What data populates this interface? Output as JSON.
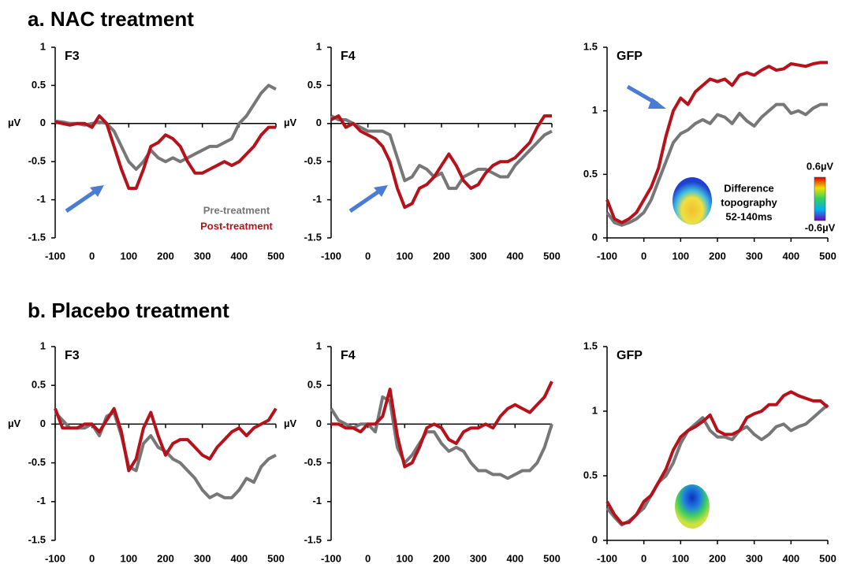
{
  "sections": [
    "a. NAC treatment",
    "b. Placebo treatment"
  ],
  "chart_data": [
    {
      "type": "line",
      "title": "F3",
      "ylabel": "µV",
      "legend": true,
      "x": [
        -100,
        -80,
        -60,
        -40,
        -20,
        0,
        20,
        40,
        60,
        80,
        100,
        120,
        140,
        160,
        180,
        200,
        220,
        240,
        260,
        280,
        300,
        320,
        340,
        360,
        380,
        400,
        420,
        440,
        460,
        480,
        500
      ],
      "xlim": [
        -100,
        500
      ],
      "xticks": [
        -100,
        0,
        100,
        200,
        300,
        400,
        500
      ],
      "ylim": [
        -1.5,
        1
      ],
      "yticks": [
        -1.5,
        -1,
        -0.5,
        0,
        0.5,
        1
      ],
      "series": [
        {
          "name": "Pre-treatment",
          "color": "#777777",
          "values": [
            0.03,
            0.02,
            0,
            0,
            -0.02,
            0,
            0.02,
            0,
            -0.1,
            -0.3,
            -0.5,
            -0.6,
            -0.5,
            -0.35,
            -0.45,
            -0.5,
            -0.45,
            -0.5,
            -0.45,
            -0.4,
            -0.35,
            -0.3,
            -0.3,
            -0.25,
            -0.2,
            0,
            0.1,
            0.25,
            0.4,
            0.5,
            0.45
          ]
        },
        {
          "name": "Post-treatment",
          "color": "#b5121b",
          "values": [
            0.02,
            0,
            -0.02,
            0,
            0,
            -0.05,
            0.1,
            0,
            -0.3,
            -0.6,
            -0.85,
            -0.85,
            -0.6,
            -0.3,
            -0.25,
            -0.15,
            -0.2,
            -0.3,
            -0.5,
            -0.65,
            -0.65,
            -0.6,
            -0.55,
            -0.5,
            -0.55,
            -0.5,
            -0.4,
            -0.3,
            -0.15,
            -0.05,
            -0.05
          ]
        }
      ]
    },
    {
      "type": "line",
      "title": "F4",
      "ylabel": "µV",
      "x": [
        -100,
        -80,
        -60,
        -40,
        -20,
        0,
        20,
        40,
        60,
        80,
        100,
        120,
        140,
        160,
        180,
        200,
        220,
        240,
        260,
        280,
        300,
        320,
        340,
        360,
        380,
        400,
        420,
        440,
        460,
        480,
        500
      ],
      "xlim": [
        -100,
        500
      ],
      "xticks": [
        -100,
        0,
        100,
        200,
        300,
        400,
        500
      ],
      "ylim": [
        -1.5,
        1
      ],
      "yticks": [
        -1.5,
        -1,
        -0.5,
        0,
        0.5,
        1
      ],
      "series": [
        {
          "color": "#777777",
          "values": [
            0.1,
            0.05,
            0.05,
            0,
            -0.05,
            -0.1,
            -0.1,
            -0.1,
            -0.15,
            -0.45,
            -0.75,
            -0.7,
            -0.55,
            -0.6,
            -0.7,
            -0.65,
            -0.85,
            -0.85,
            -0.7,
            -0.65,
            -0.6,
            -0.6,
            -0.65,
            -0.7,
            -0.7,
            -0.55,
            -0.45,
            -0.35,
            -0.25,
            -0.15,
            -0.1
          ]
        },
        {
          "color": "#b5121b",
          "values": [
            0.05,
            0.1,
            -0.05,
            0,
            -0.1,
            -0.15,
            -0.2,
            -0.3,
            -0.5,
            -0.85,
            -1.1,
            -1.05,
            -0.85,
            -0.8,
            -0.7,
            -0.55,
            -0.4,
            -0.55,
            -0.75,
            -0.85,
            -0.8,
            -0.65,
            -0.55,
            -0.5,
            -0.5,
            -0.45,
            -0.35,
            -0.25,
            -0.05,
            0.1,
            0.1
          ]
        }
      ]
    },
    {
      "type": "line",
      "title": "GFP",
      "annotation": [
        "Difference",
        "topography",
        "52-140ms"
      ],
      "colorbar_labels": [
        "0.6µV",
        "-0.6µV"
      ],
      "x": [
        -100,
        -80,
        -60,
        -40,
        -20,
        0,
        20,
        40,
        60,
        80,
        100,
        120,
        140,
        160,
        180,
        200,
        220,
        240,
        260,
        280,
        300,
        320,
        340,
        360,
        380,
        400,
        420,
        440,
        460,
        480,
        500
      ],
      "xlim": [
        -100,
        500
      ],
      "xticks": [
        -100,
        0,
        100,
        200,
        300,
        400,
        500
      ],
      "ylim": [
        0,
        1.5
      ],
      "yticks": [
        0,
        0.5,
        1,
        1.5
      ],
      "series": [
        {
          "color": "#777777",
          "values": [
            0.2,
            0.12,
            0.1,
            0.12,
            0.15,
            0.2,
            0.3,
            0.45,
            0.6,
            0.75,
            0.82,
            0.85,
            0.9,
            0.93,
            0.9,
            0.97,
            0.95,
            0.9,
            0.98,
            0.92,
            0.88,
            0.95,
            1,
            1.05,
            1.05,
            0.98,
            1,
            0.97,
            1.02,
            1.05,
            1.05
          ]
        },
        {
          "color": "#b5121b",
          "values": [
            0.3,
            0.15,
            0.12,
            0.15,
            0.2,
            0.3,
            0.4,
            0.55,
            0.8,
            1,
            1.1,
            1.05,
            1.15,
            1.2,
            1.25,
            1.23,
            1.25,
            1.2,
            1.28,
            1.3,
            1.28,
            1.32,
            1.35,
            1.32,
            1.33,
            1.37,
            1.36,
            1.35,
            1.37,
            1.38,
            1.38
          ]
        }
      ]
    },
    {
      "type": "line",
      "title": "F3",
      "ylabel": "µV",
      "x": [
        -100,
        -80,
        -60,
        -40,
        -20,
        0,
        20,
        40,
        60,
        80,
        100,
        120,
        140,
        160,
        180,
        200,
        220,
        240,
        260,
        280,
        300,
        320,
        340,
        360,
        380,
        400,
        420,
        440,
        460,
        480,
        500
      ],
      "xlim": [
        -100,
        500
      ],
      "xticks": [
        -100,
        0,
        100,
        200,
        300,
        400,
        500
      ],
      "ylim": [
        -1.5,
        1
      ],
      "yticks": [
        -1.5,
        -1,
        -0.5,
        0,
        0.5,
        1
      ],
      "series": [
        {
          "color": "#777777",
          "values": [
            0.15,
            0.05,
            -0.05,
            -0.05,
            -0.05,
            0,
            -0.15,
            0.1,
            0.15,
            -0.15,
            -0.55,
            -0.6,
            -0.25,
            -0.15,
            -0.3,
            -0.35,
            -0.45,
            -0.5,
            -0.6,
            -0.7,
            -0.85,
            -0.95,
            -0.9,
            -0.95,
            -0.95,
            -0.85,
            -0.7,
            -0.75,
            -0.55,
            -0.45,
            -0.4
          ]
        },
        {
          "color": "#b5121b",
          "values": [
            0.2,
            -0.05,
            -0.05,
            -0.05,
            0,
            0,
            -0.1,
            0.05,
            0.2,
            -0.1,
            -0.6,
            -0.45,
            -0.05,
            0.15,
            -0.15,
            -0.4,
            -0.25,
            -0.2,
            -0.2,
            -0.3,
            -0.4,
            -0.45,
            -0.3,
            -0.2,
            -0.1,
            -0.05,
            -0.15,
            -0.05,
            0,
            0.05,
            0.2
          ]
        }
      ]
    },
    {
      "type": "line",
      "title": "F4",
      "ylabel": "µV",
      "x": [
        -100,
        -80,
        -60,
        -40,
        -20,
        0,
        20,
        40,
        60,
        80,
        100,
        120,
        140,
        160,
        180,
        200,
        220,
        240,
        260,
        280,
        300,
        320,
        340,
        360,
        380,
        400,
        420,
        440,
        460,
        480,
        500
      ],
      "xlim": [
        -100,
        500
      ],
      "xticks": [
        -100,
        0,
        100,
        200,
        300,
        400,
        500
      ],
      "ylim": [
        -1.5,
        1
      ],
      "yticks": [
        -1.5,
        -1,
        -0.5,
        0,
        0.5,
        1
      ],
      "series": [
        {
          "color": "#777777",
          "values": [
            0.2,
            0.05,
            0,
            -0.05,
            0,
            0,
            -0.1,
            0.35,
            0.3,
            -0.3,
            -0.5,
            -0.4,
            -0.25,
            -0.1,
            -0.1,
            -0.25,
            -0.35,
            -0.3,
            -0.35,
            -0.5,
            -0.6,
            -0.6,
            -0.65,
            -0.65,
            -0.7,
            -0.65,
            -0.6,
            -0.6,
            -0.5,
            -0.3,
            0
          ]
        },
        {
          "color": "#b5121b",
          "values": [
            0,
            0,
            -0.05,
            -0.05,
            -0.1,
            0,
            0,
            0.1,
            0.45,
            -0.15,
            -0.55,
            -0.5,
            -0.3,
            -0.05,
            0,
            -0.05,
            -0.2,
            -0.25,
            -0.1,
            -0.05,
            -0.05,
            0,
            -0.05,
            0.1,
            0.2,
            0.25,
            0.2,
            0.15,
            0.25,
            0.35,
            0.55
          ]
        }
      ]
    },
    {
      "type": "line",
      "title": "GFP",
      "x": [
        -100,
        -80,
        -60,
        -40,
        -20,
        0,
        20,
        40,
        60,
        80,
        100,
        120,
        140,
        160,
        180,
        200,
        220,
        240,
        260,
        280,
        300,
        320,
        340,
        360,
        380,
        400,
        420,
        440,
        460,
        480,
        500
      ],
      "xlim": [
        -100,
        500
      ],
      "xticks": [
        -100,
        0,
        100,
        200,
        300,
        400,
        500
      ],
      "ylim": [
        0,
        1.5
      ],
      "yticks": [
        0,
        0.5,
        1,
        1.5
      ],
      "series": [
        {
          "color": "#777777",
          "values": [
            0.25,
            0.18,
            0.12,
            0.15,
            0.2,
            0.25,
            0.35,
            0.45,
            0.5,
            0.6,
            0.75,
            0.85,
            0.9,
            0.95,
            0.85,
            0.8,
            0.8,
            0.78,
            0.85,
            0.88,
            0.82,
            0.78,
            0.82,
            0.88,
            0.9,
            0.85,
            0.88,
            0.9,
            0.95,
            1,
            1.05
          ]
        },
        {
          "color": "#b5121b",
          "values": [
            0.3,
            0.2,
            0.13,
            0.14,
            0.2,
            0.3,
            0.35,
            0.45,
            0.55,
            0.7,
            0.8,
            0.85,
            0.88,
            0.92,
            0.97,
            0.85,
            0.82,
            0.82,
            0.85,
            0.95,
            0.98,
            1,
            1.05,
            1.05,
            1.12,
            1.15,
            1.12,
            1.1,
            1.08,
            1.08,
            1.03
          ]
        }
      ]
    }
  ]
}
